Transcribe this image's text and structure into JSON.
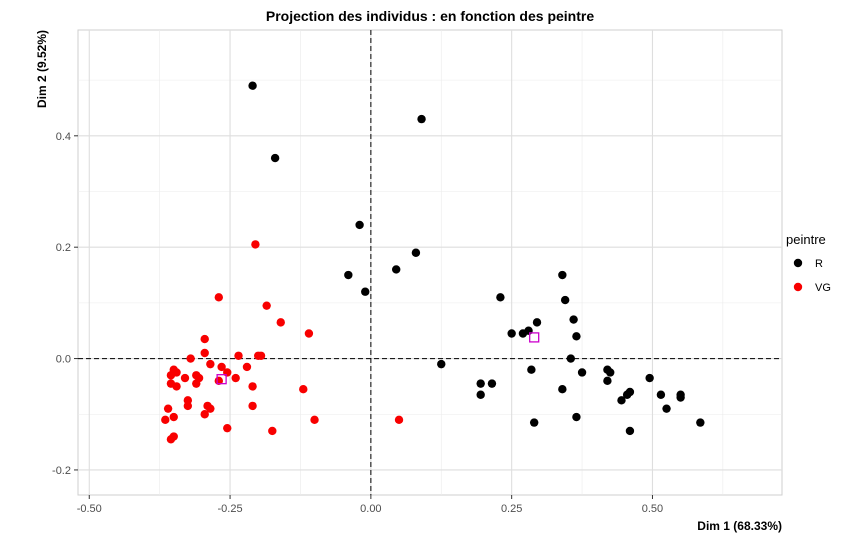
{
  "chart_data": {
    "type": "scatter",
    "title": "Projection des individus : en fonction des peintre",
    "xlabel": "Dim 1 (68.33%)",
    "ylabel": "Dim 2 (9.52%)",
    "xlim": [
      -0.52,
      0.73
    ],
    "ylim": [
      -0.245,
      0.59
    ],
    "x_ticks": [
      -0.5,
      -0.25,
      0.0,
      0.25,
      0.5
    ],
    "x_tick_labels": [
      "-0.50",
      "-0.25",
      "0.00",
      "0.25",
      "0.50"
    ],
    "y_ticks": [
      -0.2,
      0.0,
      0.2,
      0.4
    ],
    "y_tick_labels": [
      "-0.2",
      "0.0",
      "0.2",
      "0.4"
    ],
    "grid": true,
    "reference_lines": {
      "x": 0.0,
      "y": 0.0,
      "style": "dashed"
    },
    "legend": {
      "title": "peintre",
      "position": "right"
    },
    "series": [
      {
        "name": "R",
        "color": "#000000",
        "points": [
          [
            -0.21,
            0.49
          ],
          [
            -0.17,
            0.36
          ],
          [
            0.09,
            0.43
          ],
          [
            -0.02,
            0.24
          ],
          [
            -0.04,
            0.15
          ],
          [
            -0.01,
            0.12
          ],
          [
            0.08,
            0.19
          ],
          [
            0.045,
            0.16
          ],
          [
            0.23,
            0.11
          ],
          [
            0.34,
            0.15
          ],
          [
            0.345,
            0.105
          ],
          [
            0.36,
            0.07
          ],
          [
            0.365,
            0.04
          ],
          [
            0.295,
            0.065
          ],
          [
            0.28,
            0.05
          ],
          [
            0.27,
            0.045
          ],
          [
            0.25,
            0.045
          ],
          [
            0.355,
            0.0
          ],
          [
            0.125,
            -0.01
          ],
          [
            0.195,
            -0.045
          ],
          [
            0.215,
            -0.045
          ],
          [
            0.195,
            -0.065
          ],
          [
            0.285,
            -0.02
          ],
          [
            0.375,
            -0.025
          ],
          [
            0.34,
            -0.055
          ],
          [
            0.42,
            -0.02
          ],
          [
            0.425,
            -0.025
          ],
          [
            0.42,
            -0.04
          ],
          [
            0.495,
            -0.035
          ],
          [
            0.46,
            -0.06
          ],
          [
            0.455,
            -0.065
          ],
          [
            0.445,
            -0.075
          ],
          [
            0.515,
            -0.065
          ],
          [
            0.55,
            -0.065
          ],
          [
            0.55,
            -0.07
          ],
          [
            0.525,
            -0.09
          ],
          [
            0.365,
            -0.105
          ],
          [
            0.29,
            -0.115
          ],
          [
            0.46,
            -0.13
          ],
          [
            0.585,
            -0.115
          ]
        ],
        "centroid": [
          0.29,
          0.038
        ]
      },
      {
        "name": "VG",
        "color": "#f80000",
        "points": [
          [
            -0.205,
            0.205
          ],
          [
            -0.27,
            0.11
          ],
          [
            -0.185,
            0.095
          ],
          [
            -0.16,
            0.065
          ],
          [
            -0.11,
            0.045
          ],
          [
            -0.295,
            0.035
          ],
          [
            -0.295,
            0.01
          ],
          [
            -0.2,
            0.005
          ],
          [
            -0.195,
            0.005
          ],
          [
            -0.235,
            0.005
          ],
          [
            -0.32,
            0.0
          ],
          [
            -0.285,
            -0.01
          ],
          [
            -0.265,
            -0.015
          ],
          [
            -0.22,
            -0.015
          ],
          [
            -0.35,
            -0.02
          ],
          [
            -0.345,
            -0.025
          ],
          [
            -0.255,
            -0.025
          ],
          [
            -0.24,
            -0.035
          ],
          [
            -0.355,
            -0.03
          ],
          [
            -0.33,
            -0.035
          ],
          [
            -0.305,
            -0.035
          ],
          [
            -0.31,
            -0.03
          ],
          [
            -0.27,
            -0.04
          ],
          [
            -0.355,
            -0.045
          ],
          [
            -0.345,
            -0.05
          ],
          [
            -0.31,
            -0.045
          ],
          [
            -0.21,
            -0.05
          ],
          [
            -0.12,
            -0.055
          ],
          [
            -0.325,
            -0.075
          ],
          [
            -0.29,
            -0.085
          ],
          [
            -0.285,
            -0.09
          ],
          [
            -0.325,
            -0.085
          ],
          [
            -0.21,
            -0.085
          ],
          [
            -0.36,
            -0.09
          ],
          [
            -0.295,
            -0.1
          ],
          [
            -0.35,
            -0.105
          ],
          [
            -0.365,
            -0.11
          ],
          [
            -0.1,
            -0.11
          ],
          [
            0.05,
            -0.11
          ],
          [
            -0.255,
            -0.125
          ],
          [
            -0.175,
            -0.13
          ],
          [
            -0.35,
            -0.14
          ],
          [
            -0.355,
            -0.145
          ]
        ],
        "centroid": [
          -0.265,
          -0.037
        ]
      }
    ]
  }
}
